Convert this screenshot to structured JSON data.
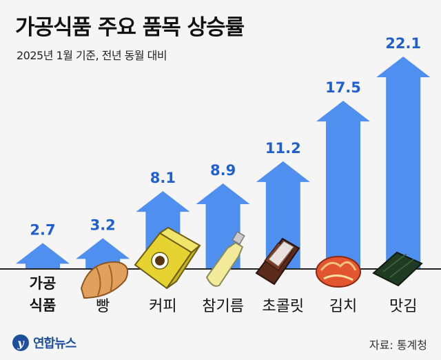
{
  "header": {
    "title": "가공식품 주요 품목 상승률",
    "subtitle": "2025년 1월 기준, 전년 동월 대비"
  },
  "footer": {
    "logo_mark": "y",
    "logo_text": "연합뉴스",
    "source": "자료: 통계청"
  },
  "colors": {
    "arrow": "#4f8ff0",
    "value_label": "#1f5fd0",
    "baseline": "#222222"
  },
  "chart_data": {
    "type": "bar",
    "title": "가공식품 주요 품목 상승률",
    "subtitle": "2025년 1월 기준, 전년 동월 대비",
    "categories": [
      "가공\n식품",
      "빵",
      "커피",
      "참기름",
      "초콜릿",
      "김치",
      "맛김"
    ],
    "values": [
      2.7,
      3.2,
      8.1,
      8.9,
      11.2,
      17.5,
      22.1
    ],
    "value_labels": [
      "2.7",
      "3.2",
      "8.1",
      "8.9",
      "11.2",
      "17.5",
      "22.1"
    ],
    "icons": [
      "",
      "bread-icon",
      "coffee-box-icon",
      "sesame-oil-bottle-icon",
      "chocolate-bar-icon",
      "kimchi-icon",
      "seaweed-icon"
    ],
    "mark_shape": "up-arrow",
    "ylim": [
      0,
      22.1
    ],
    "grid": false,
    "legend": "none"
  }
}
